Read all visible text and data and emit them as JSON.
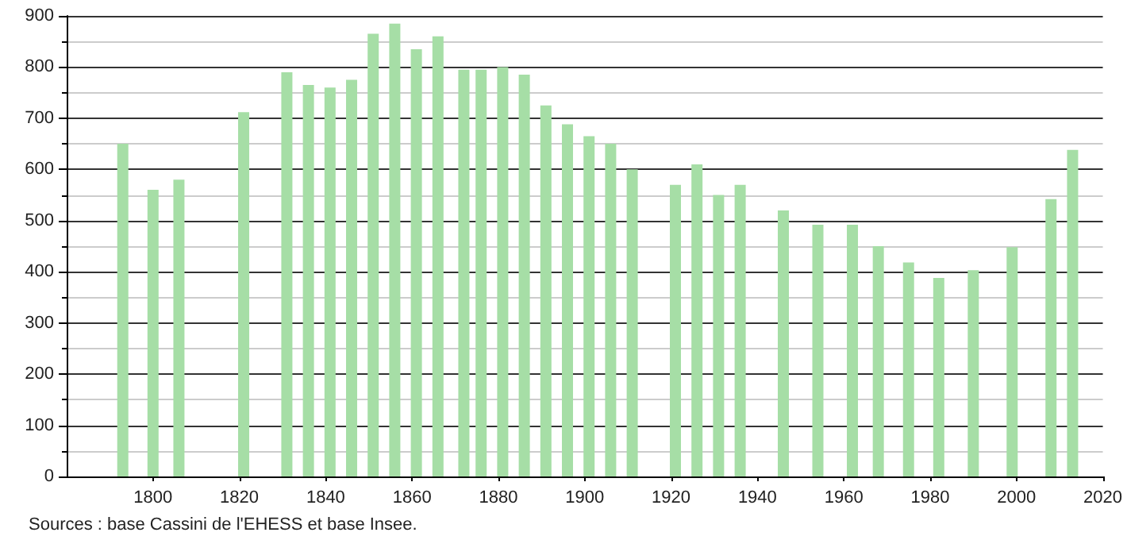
{
  "chart_data": {
    "type": "bar",
    "x": [
      1793,
      1800,
      1806,
      1821,
      1831,
      1836,
      1841,
      1846,
      1851,
      1856,
      1861,
      1866,
      1872,
      1876,
      1881,
      1886,
      1891,
      1896,
      1901,
      1906,
      1911,
      1921,
      1926,
      1931,
      1936,
      1946,
      1954,
      1962,
      1968,
      1975,
      1982,
      1990,
      1999,
      2008,
      2013
    ],
    "values": [
      650,
      560,
      580,
      712,
      790,
      765,
      760,
      775,
      865,
      885,
      835,
      860,
      795,
      795,
      800,
      785,
      725,
      688,
      665,
      650,
      600,
      570,
      610,
      550,
      570,
      520,
      492,
      492,
      450,
      418,
      388,
      403,
      448,
      542,
      638
    ],
    "color": "#a6dea6",
    "xlim": [
      1780,
      2020
    ],
    "xticks": [
      1800,
      1820,
      1840,
      1860,
      1880,
      1900,
      1920,
      1940,
      1960,
      1980,
      2000,
      2020
    ],
    "ylim": [
      0,
      900
    ],
    "yticks": [
      0,
      100,
      200,
      300,
      400,
      500,
      600,
      700,
      800,
      900
    ],
    "grid": "y",
    "annotations": [
      "Sources : base Cassini de l'EHESS et base Insee."
    ]
  }
}
